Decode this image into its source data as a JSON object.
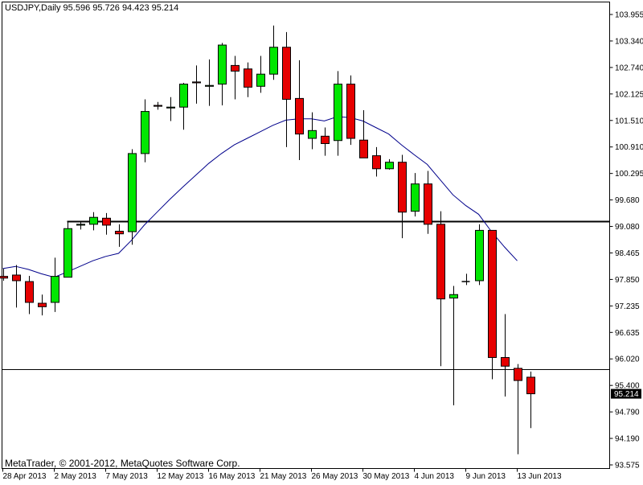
{
  "header": {
    "symbol_timeframe": "USDJPY,Daily",
    "ohlc": "95.596 95.726 94.423 95.214",
    "title": "USDJPY,Daily  95.596 95.726 94.423 95.214"
  },
  "footer": {
    "copyright": "MetaTrader, © 2001-2012, MetaQuotes Software Corp."
  },
  "colors": {
    "bull": "#00e600",
    "bear": "#e60000",
    "ma": "#00008b",
    "line": "#000000",
    "background": "#ffffff"
  },
  "chart_data": {
    "type": "candlestick",
    "ylim": [
      93.575,
      104.2
    ],
    "y_ticks": [
      "103.955",
      "103.340",
      "102.740",
      "102.125",
      "101.510",
      "100.910",
      "100.295",
      "99.680",
      "99.080",
      "98.465",
      "97.850",
      "97.235",
      "96.635",
      "96.020",
      "95.400",
      "94.790",
      "94.190",
      "93.575"
    ],
    "x_tick_labels": [
      "28 Apr 2013",
      "2 May 2013",
      "7 May 2013",
      "12 May 2013",
      "16 May 2013",
      "21 May 2013",
      "26 May 2013",
      "30 May 2013",
      "4 Jun 2013",
      "9 Jun 2013",
      "13 Jun 2013"
    ],
    "last_price_label": "95.214",
    "horizontal_levels": [
      {
        "value": 99.2,
        "style": "thick",
        "from_index": 5
      },
      {
        "value": 95.78,
        "style": "thin",
        "from_index": 0
      }
    ],
    "candles": [
      {
        "o": 97.92,
        "h": 98.1,
        "l": 97.82,
        "c": 97.88
      },
      {
        "o": 97.95,
        "h": 98.18,
        "l": 97.2,
        "c": 97.82
      },
      {
        "o": 97.8,
        "h": 97.93,
        "l": 97.05,
        "c": 97.32
      },
      {
        "o": 97.3,
        "h": 97.5,
        "l": 97.02,
        "c": 97.22
      },
      {
        "o": 97.32,
        "h": 98.35,
        "l": 97.1,
        "c": 97.92
      },
      {
        "o": 97.9,
        "h": 99.2,
        "l": 97.9,
        "c": 99.02
      },
      {
        "o": 99.1,
        "h": 99.2,
        "l": 99.0,
        "c": 99.12
      },
      {
        "o": 99.12,
        "h": 99.4,
        "l": 98.98,
        "c": 99.28
      },
      {
        "o": 99.26,
        "h": 99.38,
        "l": 98.88,
        "c": 99.1
      },
      {
        "o": 98.96,
        "h": 99.12,
        "l": 98.6,
        "c": 98.9
      },
      {
        "o": 98.95,
        "h": 100.85,
        "l": 98.65,
        "c": 100.75
      },
      {
        "o": 100.75,
        "h": 102.0,
        "l": 100.55,
        "c": 101.72
      },
      {
        "o": 101.86,
        "h": 101.94,
        "l": 101.76,
        "c": 101.84
      },
      {
        "o": 101.8,
        "h": 102.05,
        "l": 101.5,
        "c": 101.82
      },
      {
        "o": 101.82,
        "h": 102.38,
        "l": 101.3,
        "c": 102.35
      },
      {
        "o": 102.4,
        "h": 102.78,
        "l": 101.9,
        "c": 102.38
      },
      {
        "o": 102.3,
        "h": 102.92,
        "l": 101.85,
        "c": 102.32
      },
      {
        "o": 102.35,
        "h": 103.3,
        "l": 101.86,
        "c": 103.25
      },
      {
        "o": 102.78,
        "h": 103.0,
        "l": 102.0,
        "c": 102.65
      },
      {
        "o": 102.7,
        "h": 102.85,
        "l": 102.05,
        "c": 102.28
      },
      {
        "o": 102.3,
        "h": 103.0,
        "l": 102.15,
        "c": 102.58
      },
      {
        "o": 102.58,
        "h": 103.7,
        "l": 102.45,
        "c": 103.2
      },
      {
        "o": 103.2,
        "h": 103.55,
        "l": 100.9,
        "c": 102.0
      },
      {
        "o": 102.02,
        "h": 102.9,
        "l": 100.6,
        "c": 101.2
      },
      {
        "o": 101.1,
        "h": 101.7,
        "l": 100.85,
        "c": 101.28
      },
      {
        "o": 101.15,
        "h": 101.35,
        "l": 100.7,
        "c": 100.98
      },
      {
        "o": 101.05,
        "h": 102.65,
        "l": 100.7,
        "c": 102.35
      },
      {
        "o": 102.35,
        "h": 102.55,
        "l": 100.95,
        "c": 101.1
      },
      {
        "o": 101.06,
        "h": 101.75,
        "l": 100.65,
        "c": 100.65
      },
      {
        "o": 100.7,
        "h": 100.9,
        "l": 100.22,
        "c": 100.4
      },
      {
        "o": 100.4,
        "h": 100.62,
        "l": 100.38,
        "c": 100.55
      },
      {
        "o": 100.55,
        "h": 100.72,
        "l": 98.8,
        "c": 99.4
      },
      {
        "o": 99.42,
        "h": 100.3,
        "l": 99.3,
        "c": 100.05
      },
      {
        "o": 100.05,
        "h": 100.35,
        "l": 98.9,
        "c": 99.12
      },
      {
        "o": 99.12,
        "h": 99.42,
        "l": 95.85,
        "c": 97.4
      },
      {
        "o": 97.42,
        "h": 97.7,
        "l": 94.95,
        "c": 97.5
      },
      {
        "o": 97.8,
        "h": 97.98,
        "l": 97.72,
        "c": 97.8
      },
      {
        "o": 97.82,
        "h": 99.12,
        "l": 97.72,
        "c": 98.98
      },
      {
        "o": 98.98,
        "h": 98.98,
        "l": 95.55,
        "c": 96.05
      },
      {
        "o": 96.05,
        "h": 97.05,
        "l": 95.15,
        "c": 95.85
      },
      {
        "o": 95.8,
        "h": 95.9,
        "l": 93.82,
        "c": 95.52
      },
      {
        "o": 95.596,
        "h": 95.726,
        "l": 94.423,
        "c": 95.214
      }
    ],
    "moving_average": [
      {
        "i": 0,
        "v": 98.1
      },
      {
        "i": 1,
        "v": 98.15
      },
      {
        "i": 2,
        "v": 98.08
      },
      {
        "i": 3,
        "v": 97.98
      },
      {
        "i": 4,
        "v": 97.9
      },
      {
        "i": 5,
        "v": 98.02
      },
      {
        "i": 6,
        "v": 98.15
      },
      {
        "i": 7,
        "v": 98.28
      },
      {
        "i": 8,
        "v": 98.38
      },
      {
        "i": 9,
        "v": 98.45
      },
      {
        "i": 10,
        "v": 98.75
      },
      {
        "i": 11,
        "v": 99.1
      },
      {
        "i": 12,
        "v": 99.4
      },
      {
        "i": 13,
        "v": 99.7
      },
      {
        "i": 14,
        "v": 99.98
      },
      {
        "i": 15,
        "v": 100.25
      },
      {
        "i": 16,
        "v": 100.52
      },
      {
        "i": 17,
        "v": 100.75
      },
      {
        "i": 18,
        "v": 100.95
      },
      {
        "i": 19,
        "v": 101.1
      },
      {
        "i": 20,
        "v": 101.25
      },
      {
        "i": 21,
        "v": 101.4
      },
      {
        "i": 22,
        "v": 101.52
      },
      {
        "i": 23,
        "v": 101.55
      },
      {
        "i": 24,
        "v": 101.55
      },
      {
        "i": 25,
        "v": 101.5
      },
      {
        "i": 26,
        "v": 101.6
      },
      {
        "i": 27,
        "v": 101.58
      },
      {
        "i": 28,
        "v": 101.5
      },
      {
        "i": 29,
        "v": 101.35
      },
      {
        "i": 30,
        "v": 101.2
      },
      {
        "i": 31,
        "v": 100.95
      },
      {
        "i": 32,
        "v": 100.72
      },
      {
        "i": 33,
        "v": 100.5
      },
      {
        "i": 34,
        "v": 100.15
      },
      {
        "i": 35,
        "v": 99.8
      },
      {
        "i": 36,
        "v": 99.55
      },
      {
        "i": 37,
        "v": 99.35
      },
      {
        "i": 38,
        "v": 98.95
      },
      {
        "i": 39,
        "v": 98.6
      },
      {
        "i": 40,
        "v": 98.28
      }
    ]
  }
}
